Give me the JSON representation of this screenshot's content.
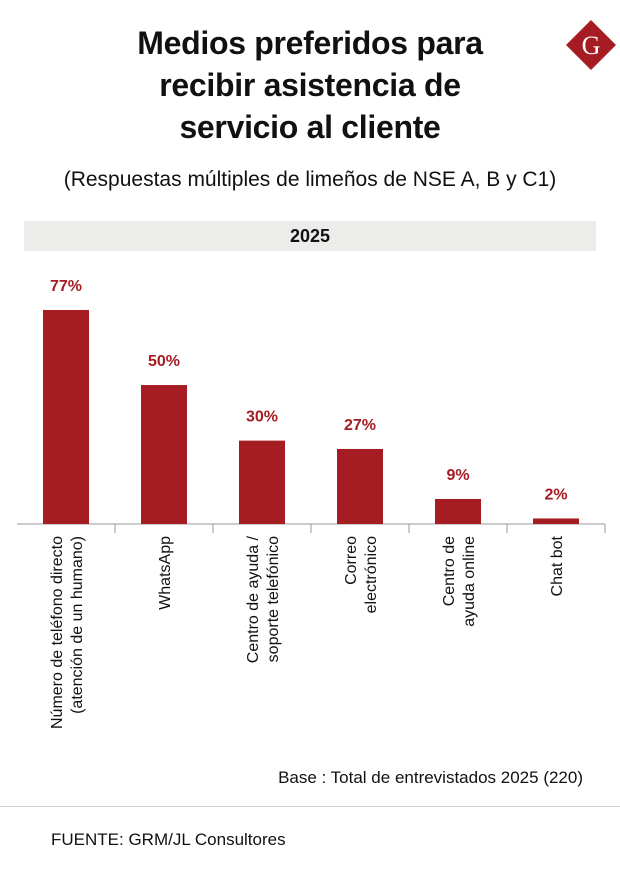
{
  "title_lines": [
    "Medios preferidos  para",
    "recibir asistencia de",
    "servicio al cliente"
  ],
  "subtitle": "(Respuestas múltiples de limeños de NSE A, B y C1)",
  "logo_letter": "G",
  "note": "Base : Total de entrevistados 2025 (220)",
  "source": "FUENTE: GRM/JL Consultores",
  "colors": {
    "bar": "#a51d22",
    "label": "#a51d22",
    "logo": "#a51d22"
  },
  "chart_data": {
    "type": "bar",
    "title": "",
    "band_label": "2025",
    "categories": [
      [
        "Número de teléfono directo",
        "(atención de un humano)"
      ],
      [
        "WhatsApp"
      ],
      [
        "Centro de ayuda /",
        "soporte telefónico"
      ],
      [
        "Correo",
        "electrónico"
      ],
      [
        "Centro de",
        "ayuda online"
      ],
      [
        "Chat bot"
      ]
    ],
    "values": [
      77,
      50,
      30,
      27,
      9,
      2
    ],
    "value_labels": [
      "77%",
      "50%",
      "30%",
      "27%",
      "9%",
      "2%"
    ],
    "unit": "%",
    "ylim": [
      0,
      77
    ],
    "grid": false,
    "legend": "none"
  }
}
